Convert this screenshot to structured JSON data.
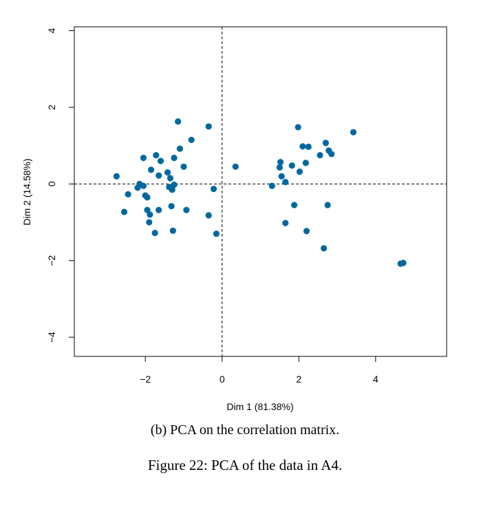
{
  "chart_data": {
    "type": "scatter",
    "title": "",
    "xlabel": "Dim 1 (81.38%)",
    "ylabel": "Dim 2 (14.58%)",
    "xlim": [
      -3.85,
      5.85
    ],
    "ylim": [
      -4.5,
      4.1
    ],
    "x_ticks": [
      -2,
      0,
      2,
      4
    ],
    "y_ticks": [
      -4,
      -2,
      0,
      2,
      4
    ],
    "x_tick_labels": [
      "−2",
      "0",
      "2",
      "4"
    ],
    "y_tick_labels": [
      "−4",
      "−2",
      "0",
      "2",
      "4"
    ],
    "reference_lines": {
      "x": 0,
      "y": 0,
      "style": "dashed"
    },
    "grid": false,
    "point_color": "#00689f",
    "points": [
      [
        -2.75,
        0.2
      ],
      [
        -2.55,
        -0.73
      ],
      [
        -2.45,
        -0.27
      ],
      [
        -2.2,
        -0.1
      ],
      [
        -2.15,
        0.0
      ],
      [
        -2.05,
        -0.05
      ],
      [
        -2.05,
        0.68
      ],
      [
        -2.0,
        -0.3
      ],
      [
        -1.95,
        -0.35
      ],
      [
        -1.95,
        -0.68
      ],
      [
        -1.9,
        -1.0
      ],
      [
        -1.88,
        -0.8
      ],
      [
        -1.85,
        0.37
      ],
      [
        -1.75,
        -1.28
      ],
      [
        -1.72,
        0.75
      ],
      [
        -1.65,
        0.22
      ],
      [
        -1.65,
        -0.68
      ],
      [
        -1.6,
        0.6
      ],
      [
        -1.42,
        0.3
      ],
      [
        -1.38,
        -0.08
      ],
      [
        -1.35,
        0.15
      ],
      [
        -1.32,
        -0.58
      ],
      [
        -1.3,
        -0.15
      ],
      [
        -1.28,
        -1.22
      ],
      [
        -1.25,
        0.68
      ],
      [
        -1.25,
        -0.02
      ],
      [
        -1.15,
        1.63
      ],
      [
        -1.1,
        0.92
      ],
      [
        -1.0,
        0.45
      ],
      [
        -0.93,
        -0.68
      ],
      [
        -0.8,
        1.15
      ],
      [
        -0.35,
        1.5
      ],
      [
        -0.35,
        -0.82
      ],
      [
        -0.22,
        -0.13
      ],
      [
        -0.15,
        -1.3
      ],
      [
        0.35,
        0.45
      ],
      [
        1.3,
        -0.05
      ],
      [
        1.5,
        0.43
      ],
      [
        1.52,
        0.57
      ],
      [
        1.55,
        0.2
      ],
      [
        1.65,
        0.05
      ],
      [
        1.65,
        -1.02
      ],
      [
        1.82,
        0.48
      ],
      [
        1.88,
        -0.55
      ],
      [
        1.98,
        1.48
      ],
      [
        2.02,
        0.32
      ],
      [
        2.1,
        0.98
      ],
      [
        2.18,
        0.55
      ],
      [
        2.2,
        -1.23
      ],
      [
        2.25,
        0.97
      ],
      [
        2.55,
        0.75
      ],
      [
        2.65,
        -1.68
      ],
      [
        2.7,
        1.07
      ],
      [
        2.75,
        -0.55
      ],
      [
        2.78,
        0.87
      ],
      [
        2.85,
        0.78
      ],
      [
        3.42,
        1.35
      ],
      [
        4.65,
        -2.08
      ],
      [
        4.72,
        -2.06
      ]
    ]
  },
  "captions": {
    "subcaption": "(b) PCA on the correlation matrix.",
    "figure": "Figure 22: PCA of the data in A4."
  }
}
